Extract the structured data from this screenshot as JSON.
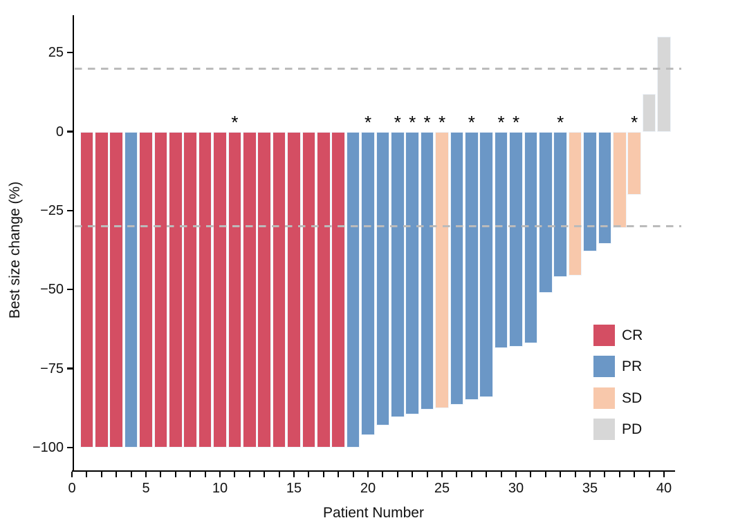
{
  "figure": {
    "y_axis": {
      "title": "Best size change (%)",
      "ticks": [
        {
          "value": 25,
          "label": "25"
        },
        {
          "value": 0,
          "label": "0"
        },
        {
          "value": -25,
          "label": "−25"
        },
        {
          "value": -50,
          "label": "−50"
        },
        {
          "value": -75,
          "label": "−75"
        },
        {
          "value": -100,
          "label": "−100"
        }
      ]
    },
    "x_axis": {
      "title": "Patient Number",
      "minor_tick_every": 1,
      "labeled_ticks": [
        {
          "value": 0,
          "label": "0"
        },
        {
          "value": 5,
          "label": "5"
        },
        {
          "value": 10,
          "label": "10"
        },
        {
          "value": 15,
          "label": "15"
        },
        {
          "value": 20,
          "label": "20"
        },
        {
          "value": 25,
          "label": "25"
        },
        {
          "value": 30,
          "label": "30"
        },
        {
          "value": 35,
          "label": "35"
        },
        {
          "value": 40,
          "label": "40"
        }
      ]
    },
    "legend": {
      "items": [
        {
          "key": "CR",
          "label": "CR",
          "color": "#d44e63"
        },
        {
          "key": "PR",
          "label": "PR",
          "color": "#6b97c6"
        },
        {
          "key": "SD",
          "label": "SD",
          "color": "#f8c8ab"
        },
        {
          "key": "PD",
          "label": "PD",
          "color": "#d7d7d7"
        }
      ]
    },
    "colors": {
      "CR": "#d44e63",
      "PR": "#6b97c6",
      "SD": "#f8c8ab",
      "PD": "#d7d7d7",
      "reference_line": "#bbbbbb",
      "axis": "#000000",
      "star": "#000000"
    }
  },
  "chart_data": {
    "type": "bar",
    "title": "",
    "xlabel": "Patient Number",
    "ylabel": "Best size change (%)",
    "xlim": [
      0,
      41
    ],
    "ylim": [
      -105,
      38
    ],
    "grid": false,
    "legend_position": "right-middle",
    "reference_lines_y": [
      20,
      -30
    ],
    "response_categories": [
      "CR",
      "PR",
      "SD",
      "PD"
    ],
    "star_marked_patients": [
      11,
      20,
      22,
      23,
      24,
      25,
      27,
      29,
      30,
      33,
      38
    ],
    "patients": [
      {
        "patient": 1,
        "change": -100,
        "response": "CR",
        "star": false
      },
      {
        "patient": 2,
        "change": -100,
        "response": "CR",
        "star": false
      },
      {
        "patient": 3,
        "change": -100,
        "response": "CR",
        "star": false
      },
      {
        "patient": 4,
        "change": -100,
        "response": "PR",
        "star": false
      },
      {
        "patient": 5,
        "change": -100,
        "response": "CR",
        "star": false
      },
      {
        "patient": 6,
        "change": -100,
        "response": "CR",
        "star": false
      },
      {
        "patient": 7,
        "change": -100,
        "response": "CR",
        "star": false
      },
      {
        "patient": 8,
        "change": -100,
        "response": "CR",
        "star": false
      },
      {
        "patient": 9,
        "change": -100,
        "response": "CR",
        "star": false
      },
      {
        "patient": 10,
        "change": -100,
        "response": "CR",
        "star": false
      },
      {
        "patient": 11,
        "change": -100,
        "response": "CR",
        "star": true
      },
      {
        "patient": 12,
        "change": -100,
        "response": "CR",
        "star": false
      },
      {
        "patient": 13,
        "change": -100,
        "response": "CR",
        "star": false
      },
      {
        "patient": 14,
        "change": -100,
        "response": "CR",
        "star": false
      },
      {
        "patient": 15,
        "change": -100,
        "response": "CR",
        "star": false
      },
      {
        "patient": 16,
        "change": -100,
        "response": "CR",
        "star": false
      },
      {
        "patient": 17,
        "change": -100,
        "response": "CR",
        "star": false
      },
      {
        "patient": 18,
        "change": -100,
        "response": "CR",
        "star": false
      },
      {
        "patient": 19,
        "change": -100,
        "response": "PR",
        "star": false
      },
      {
        "patient": 20,
        "change": -96,
        "response": "PR",
        "star": true
      },
      {
        "patient": 21,
        "change": -93,
        "response": "PR",
        "star": false
      },
      {
        "patient": 22,
        "change": -90.5,
        "response": "PR",
        "star": true
      },
      {
        "patient": 23,
        "change": -89.5,
        "response": "PR",
        "star": true
      },
      {
        "patient": 24,
        "change": -88,
        "response": "PR",
        "star": true
      },
      {
        "patient": 25,
        "change": -87.5,
        "response": "SD",
        "star": true
      },
      {
        "patient": 26,
        "change": -86.5,
        "response": "PR",
        "star": false
      },
      {
        "patient": 27,
        "change": -85,
        "response": "PR",
        "star": true
      },
      {
        "patient": 28,
        "change": -84,
        "response": "PR",
        "star": false
      },
      {
        "patient": 29,
        "change": -68.5,
        "response": "PR",
        "star": true
      },
      {
        "patient": 30,
        "change": -68,
        "response": "PR",
        "star": true
      },
      {
        "patient": 31,
        "change": -67,
        "response": "PR",
        "star": false
      },
      {
        "patient": 32,
        "change": -51,
        "response": "PR",
        "star": false
      },
      {
        "patient": 33,
        "change": -46,
        "response": "PR",
        "star": true
      },
      {
        "patient": 34,
        "change": -45.5,
        "response": "SD",
        "star": false
      },
      {
        "patient": 35,
        "change": -38,
        "response": "PR",
        "star": false
      },
      {
        "patient": 36,
        "change": -35.5,
        "response": "PR",
        "star": false
      },
      {
        "patient": 37,
        "change": -30.5,
        "response": "SD",
        "star": false
      },
      {
        "patient": 38,
        "change": -20,
        "response": "SD",
        "star": true
      },
      {
        "patient": 39,
        "change": 12,
        "response": "PD",
        "star": false
      },
      {
        "patient": 40,
        "change": 30,
        "response": "PD",
        "star": false
      }
    ]
  }
}
